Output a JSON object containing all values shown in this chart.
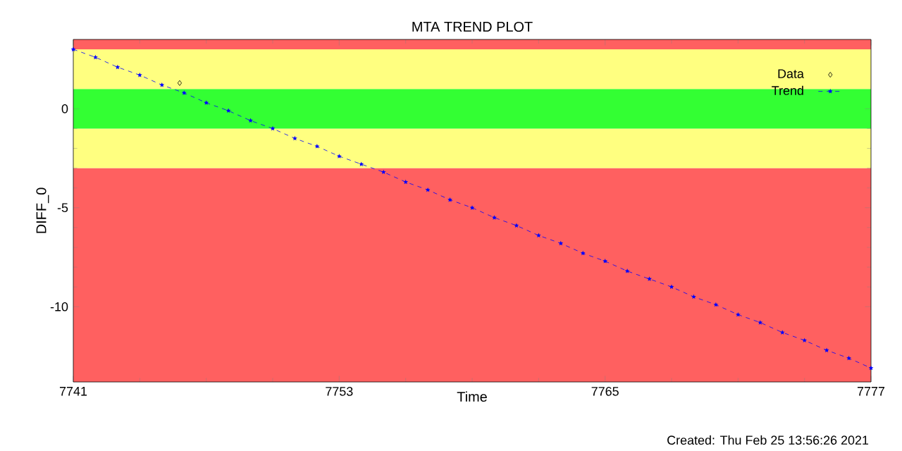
{
  "chart_data": {
    "type": "scatter",
    "title": "MTA TREND PLOT",
    "xlabel": "Time",
    "ylabel": "DIFF_0",
    "annotations": [
      "Created: Thu Feb 25 13:56:26 2021"
    ],
    "xlim": [
      7741,
      7777
    ],
    "xticks": [
      7741,
      7753,
      7765,
      7777
    ],
    "ylim": [
      -13.8,
      3.5
    ],
    "yticks": [
      -10,
      -5,
      0
    ],
    "grid": false,
    "legend": "top right",
    "bands": [
      {
        "axis": "y",
        "from": -13.8,
        "to": -3,
        "color": "#ff6060"
      },
      {
        "axis": "y",
        "from": -3,
        "to": -1,
        "color": "#ffff80"
      },
      {
        "axis": "y",
        "from": -1,
        "to": 1,
        "color": "#33ff33"
      },
      {
        "axis": "y",
        "from": 1,
        "to": 3,
        "color": "#ffff80"
      },
      {
        "axis": "y",
        "from": 3,
        "to": 3.5,
        "color": "#ff6060"
      }
    ],
    "series": [
      {
        "name": "Data",
        "color": "#000000",
        "marker": "diamond",
        "x": [
          7745.8
        ],
        "values": [
          1.3
        ]
      },
      {
        "name": "Trend",
        "type": "line",
        "color": "#0000ff",
        "marker": "star",
        "line_style": "dashed",
        "x": [
          7741,
          7742,
          7743,
          7744,
          7745,
          7746,
          7747,
          7748,
          7749,
          7750,
          7751,
          7752,
          7753,
          7754,
          7755,
          7756,
          7757,
          7758,
          7759,
          7760,
          7761,
          7762,
          7763,
          7764,
          7765,
          7766,
          7767,
          7768,
          7769,
          7770,
          7771,
          7772,
          7773,
          7774,
          7775,
          7776,
          7777
        ],
        "values": [
          3.0,
          2.6,
          2.1,
          1.7,
          1.2,
          0.8,
          0.3,
          -0.1,
          -0.6,
          -1.0,
          -1.5,
          -1.9,
          -2.4,
          -2.8,
          -3.2,
          -3.7,
          -4.1,
          -4.6,
          -5.0,
          -5.5,
          -5.9,
          -6.4,
          -6.8,
          -7.3,
          -7.7,
          -8.2,
          -8.6,
          -9.0,
          -9.5,
          -9.9,
          -10.4,
          -10.8,
          -11.3,
          -11.7,
          -12.2,
          -12.6,
          -13.1
        ]
      }
    ]
  }
}
